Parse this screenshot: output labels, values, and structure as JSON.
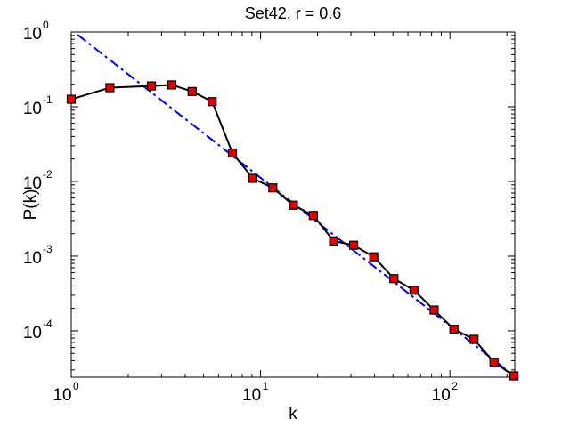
{
  "chart_data": {
    "type": "line",
    "title": "Set42, r = 0.6",
    "xlabel": "k",
    "ylabel": "P(k)",
    "xscale": "log",
    "yscale": "log",
    "xlim": [
      1,
      220
    ],
    "ylim": [
      2.4e-05,
      1
    ],
    "x_ticks": [
      {
        "base": "10",
        "exp": "0",
        "value": 1
      },
      {
        "base": "10",
        "exp": "1",
        "value": 10
      },
      {
        "base": "10",
        "exp": "2",
        "value": 100
      }
    ],
    "y_ticks": [
      {
        "base": "10",
        "exp": "0",
        "value": 1
      },
      {
        "base": "10",
        "exp": "-1",
        "value": 0.1
      },
      {
        "base": "10",
        "exp": "-2",
        "value": 0.01
      },
      {
        "base": "10",
        "exp": "-3",
        "value": 0.001
      },
      {
        "base": "10",
        "exp": "-4",
        "value": 0.0001
      }
    ],
    "grid": false,
    "series": [
      {
        "style": "line-with-square-markers",
        "line_color": "#000000",
        "marker_color": "#dd0000",
        "x": [
          1.0,
          1.6,
          2.65,
          3.4,
          4.35,
          5.55,
          7.1,
          9.1,
          11.6,
          14.9,
          19.0,
          24.3,
          31.0,
          39.6,
          50.6,
          64.6,
          82.5,
          105.0,
          134.0,
          171.0,
          218.0
        ],
        "y": [
          0.126,
          0.18,
          0.19,
          0.196,
          0.16,
          0.117,
          0.024,
          0.011,
          0.0082,
          0.0048,
          0.0035,
          0.0016,
          0.0014,
          0.00098,
          0.0005,
          0.00035,
          0.00019,
          0.000105,
          7.7e-05,
          3.8e-05,
          2.5e-05
        ]
      },
      {
        "style": "dash-dot",
        "line_color": "#0000dd",
        "x": [
          1.08,
          218.0
        ],
        "y": [
          0.92,
          2.5e-05
        ]
      }
    ]
  }
}
